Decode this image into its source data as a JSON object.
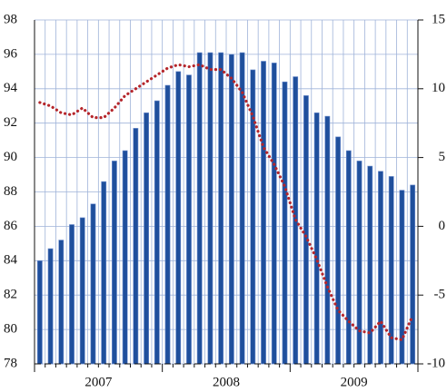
{
  "chart_data": {
    "type": "bar_line",
    "categories": [
      null,
      null,
      null,
      null,
      null,
      null,
      null,
      null,
      null,
      null,
      null,
      null,
      null,
      null,
      null,
      null,
      null,
      null,
      null,
      null,
      null,
      null,
      null,
      null,
      null,
      null,
      null,
      null,
      null,
      null,
      null,
      null,
      null,
      null,
      null,
      null
    ],
    "year_labels": [
      "2007",
      "2008",
      "2009"
    ],
    "series": [
      {
        "type": "bar",
        "axis": "y",
        "color": "#1f4f9c",
        "values": [
          84.0,
          84.7,
          85.2,
          86.1,
          86.5,
          87.3,
          88.6,
          89.8,
          90.4,
          91.7,
          92.6,
          93.3,
          94.2,
          95.0,
          94.8,
          96.1,
          96.1,
          96.1,
          96.0,
          96.1,
          95.1,
          95.6,
          95.5,
          94.4,
          94.7,
          93.6,
          92.6,
          92.4,
          91.2,
          90.4,
          89.8,
          89.5,
          89.2,
          88.9,
          88.1,
          88.4
        ]
      },
      {
        "type": "line",
        "axis": "y2",
        "color": "#b5262b",
        "values": [
          9.0,
          8.75,
          8.25,
          8.1,
          8.6,
          7.9,
          7.9,
          8.6,
          9.5,
          10.0,
          10.5,
          11.0,
          11.5,
          11.75,
          11.6,
          11.75,
          11.4,
          11.4,
          10.75,
          9.75,
          8.0,
          5.75,
          4.5,
          2.9,
          0.5,
          -0.75,
          -2.4,
          -4.4,
          -6.1,
          -6.9,
          -7.6,
          -7.75,
          -6.9,
          -8.1,
          -8.25,
          -6.5
        ]
      }
    ],
    "ylim": [
      78,
      98
    ],
    "yticks": [
      78,
      80,
      82,
      84,
      86,
      88,
      90,
      92,
      94,
      96,
      98
    ],
    "y2lim": [
      -10,
      15
    ],
    "y2ticks": [
      -10,
      -5,
      0,
      5,
      10,
      15
    ],
    "grid": true
  }
}
